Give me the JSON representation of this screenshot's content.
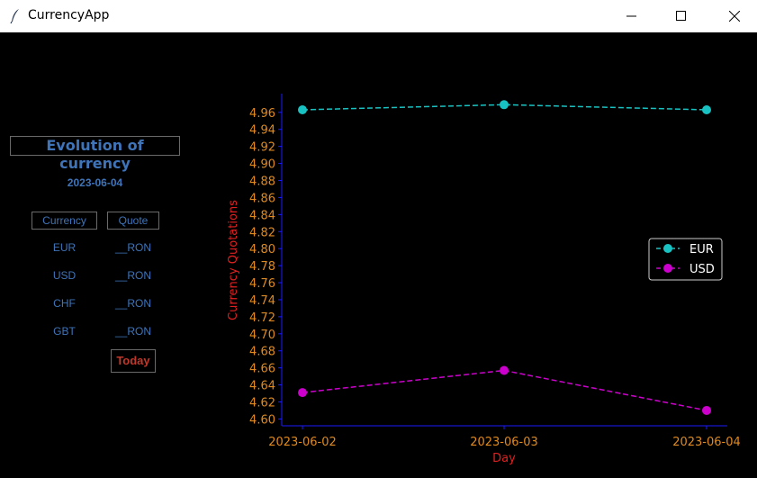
{
  "window": {
    "title": "CurrencyApp",
    "icon": "feather-icon"
  },
  "panel": {
    "title": "Evolution of currency",
    "date": "2023-06-04",
    "headers": {
      "currency": "Currency",
      "quote": "Quote"
    },
    "rows": [
      {
        "currency": "EUR",
        "quote": "__RON"
      },
      {
        "currency": "USD",
        "quote": "__RON"
      },
      {
        "currency": "CHF",
        "quote": "__RON"
      },
      {
        "currency": "GBT",
        "quote": "__RON"
      }
    ],
    "today_label": "Today"
  },
  "colors": {
    "accent": "#3f74b8",
    "today": "#c0392b",
    "tick": "#e08a1e",
    "axis_label": "#e02020",
    "axis_line": "#1a1aff",
    "eur": "#19c2c2",
    "usd": "#cc00cc"
  },
  "chart_data": {
    "type": "line",
    "x": [
      "2023-06-02",
      "2023-06-03",
      "2023-06-04"
    ],
    "series": [
      {
        "name": "EUR",
        "values": [
          4.963,
          4.969,
          4.963
        ]
      },
      {
        "name": "USD",
        "values": [
          4.631,
          4.657,
          4.61
        ]
      }
    ],
    "xlabel": "Day",
    "ylabel": "Currency Quotations",
    "ylim": [
      4.592,
      4.982
    ],
    "yticks": [
      4.6,
      4.62,
      4.64,
      4.66,
      4.68,
      4.7,
      4.72,
      4.74,
      4.76,
      4.78,
      4.8,
      4.82,
      4.84,
      4.86,
      4.88,
      4.9,
      4.92,
      4.94,
      4.96
    ],
    "ytick_labels": [
      "4.60",
      "4.62",
      "4.64",
      "4.66",
      "4.68",
      "4.70",
      "4.72",
      "4.74",
      "4.76",
      "4.78",
      "4.80",
      "4.82",
      "4.84",
      "4.86",
      "4.88",
      "4.90",
      "4.92",
      "4.94",
      "4.96"
    ],
    "grid": false,
    "legend": "right",
    "line_style": "dashed",
    "marker": "circle"
  }
}
